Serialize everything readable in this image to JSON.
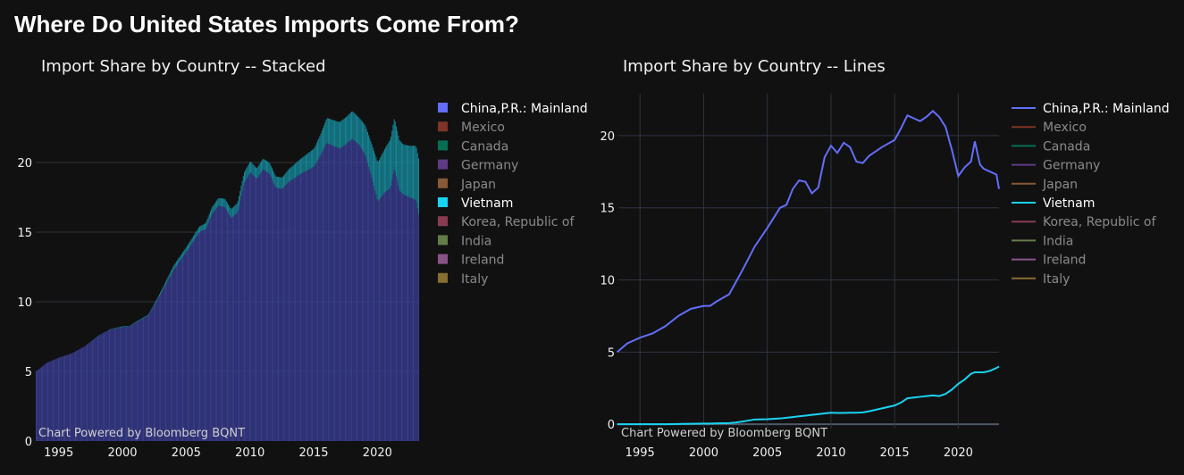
{
  "page_title": "Where Do United States Imports Come From?",
  "credit": "Chart Powered by Bloomberg BQNT",
  "chart_data": [
    {
      "type": "bar",
      "stacked": true,
      "title": "Import Share by Country -- Stacked",
      "xlim": [
        1993.2,
        2023.2
      ],
      "ylim": [
        0,
        25
      ],
      "xticks": [
        "1995",
        "2000",
        "2005",
        "2010",
        "2015",
        "2020"
      ],
      "yticks": [
        "0",
        "5",
        "10",
        "15",
        "20"
      ],
      "grid": "horizontal",
      "legend_placement": "right"
    },
    {
      "type": "line",
      "title": "Import Share by Country -- Lines",
      "xlim": [
        1993.3,
        2023.2
      ],
      "ylim": [
        -0.3,
        22.9
      ],
      "xticks": [
        "1995",
        "2000",
        "2005",
        "2010",
        "2015",
        "2020"
      ],
      "yticks": [
        "0",
        "5",
        "10",
        "15",
        "20"
      ],
      "grid": "both",
      "legend_placement": "right"
    }
  ],
  "legend": [
    {
      "name": "China,P.R.: Mainland",
      "color": "#636efa",
      "visible": true
    },
    {
      "name": "Mexico",
      "color": "#ef553b",
      "visible": false
    },
    {
      "name": "Canada",
      "color": "#00cc96",
      "visible": false
    },
    {
      "name": "Germany",
      "color": "#ab63fa",
      "visible": false
    },
    {
      "name": "Japan",
      "color": "#ffa15a",
      "visible": false
    },
    {
      "name": "Vietnam",
      "color": "#19d3f3",
      "visible": true
    },
    {
      "name": "Korea, Republic of",
      "color": "#ff6692",
      "visible": false
    },
    {
      "name": "India",
      "color": "#b6e880",
      "visible": false
    },
    {
      "name": "Ireland",
      "color": "#ff97ff",
      "visible": false
    },
    {
      "name": "Italy",
      "color": "#fecb52",
      "visible": false
    }
  ],
  "series": {
    "x": [
      1993.2,
      1994,
      1995,
      1996,
      1997,
      1998,
      1999,
      2000,
      2000.5,
      2001,
      2002,
      2002.5,
      2003,
      2004,
      2005,
      2006,
      2006.5,
      2007,
      2007.5,
      2008,
      2008.5,
      2009,
      2009.5,
      2010,
      2010.5,
      2011,
      2011.5,
      2012,
      2012.5,
      2013,
      2014,
      2015,
      2015.5,
      2016,
      2016.5,
      2017,
      2017.5,
      2018,
      2018.5,
      2019,
      2019.5,
      2020,
      2020.5,
      2021,
      2021.3,
      2021.7,
      2022,
      2022.5,
      2023,
      2023.2
    ],
    "China,P.R.: Mainland": [
      5.0,
      5.6,
      6.0,
      6.3,
      6.8,
      7.5,
      8.0,
      8.2,
      8.2,
      8.5,
      9.0,
      9.8,
      10.6,
      12.3,
      13.6,
      15.0,
      15.2,
      16.3,
      16.9,
      16.8,
      16.0,
      16.4,
      18.5,
      19.3,
      18.8,
      19.5,
      19.2,
      18.2,
      18.1,
      18.6,
      19.2,
      19.7,
      20.5,
      21.4,
      21.2,
      21.0,
      21.3,
      21.7,
      21.3,
      20.6,
      19.0,
      17.2,
      17.8,
      18.2,
      19.6,
      18.0,
      17.7,
      17.5,
      17.3,
      16.3
    ],
    "Vietnam": [
      0,
      0,
      0,
      0,
      0,
      0.02,
      0.03,
      0.05,
      0.05,
      0.06,
      0.08,
      0.12,
      0.18,
      0.33,
      0.35,
      0.4,
      0.45,
      0.5,
      0.55,
      0.6,
      0.65,
      0.7,
      0.75,
      0.8,
      0.78,
      0.78,
      0.8,
      0.8,
      0.82,
      0.9,
      1.1,
      1.3,
      1.5,
      1.8,
      1.85,
      1.9,
      1.95,
      2.0,
      1.95,
      2.1,
      2.4,
      2.8,
      3.1,
      3.5,
      3.6,
      3.6,
      3.6,
      3.7,
      3.9,
      4.0
    ]
  }
}
